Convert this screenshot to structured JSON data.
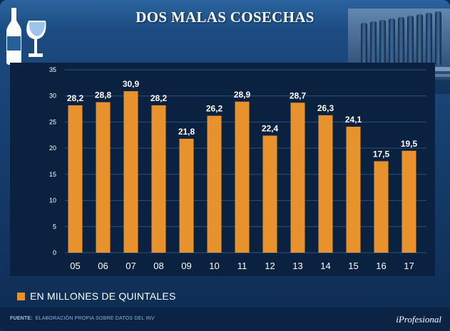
{
  "title": "DOS MALAS COSECHAS",
  "legend": {
    "label": "EN MILLONES DE QUINTALES"
  },
  "source": {
    "label": "FUENTE:",
    "text": "ELABORACIÓN PROPIA SOBRE DATOS DEL INV"
  },
  "brand": "iProfesional",
  "colors": {
    "bar": "#e8922e",
    "background": "#0a2140",
    "grid": "#2e5180",
    "text": "#ffffff"
  },
  "chart_data": {
    "type": "bar",
    "title": "DOS MALAS COSECHAS",
    "categories": [
      "05",
      "06",
      "07",
      "08",
      "09",
      "10",
      "11",
      "12",
      "13",
      "14",
      "15",
      "16",
      "17"
    ],
    "values": [
      28.2,
      28.8,
      30.9,
      28.2,
      21.8,
      26.2,
      28.9,
      22.4,
      28.7,
      26.3,
      24.1,
      17.5,
      19.5
    ],
    "value_labels": [
      "28,2",
      "28,8",
      "30,9",
      "28,2",
      "21,8",
      "26,2",
      "28,9",
      "22,4",
      "28,7",
      "26,3",
      "24,1",
      "17,5",
      "19,5"
    ],
    "series_name": "EN MILLONES DE QUINTALES",
    "ylim": [
      0,
      35
    ],
    "yticks": [
      0,
      5,
      10,
      15,
      20,
      25,
      30,
      35
    ],
    "grid": true,
    "xlabel": "",
    "ylabel": ""
  }
}
